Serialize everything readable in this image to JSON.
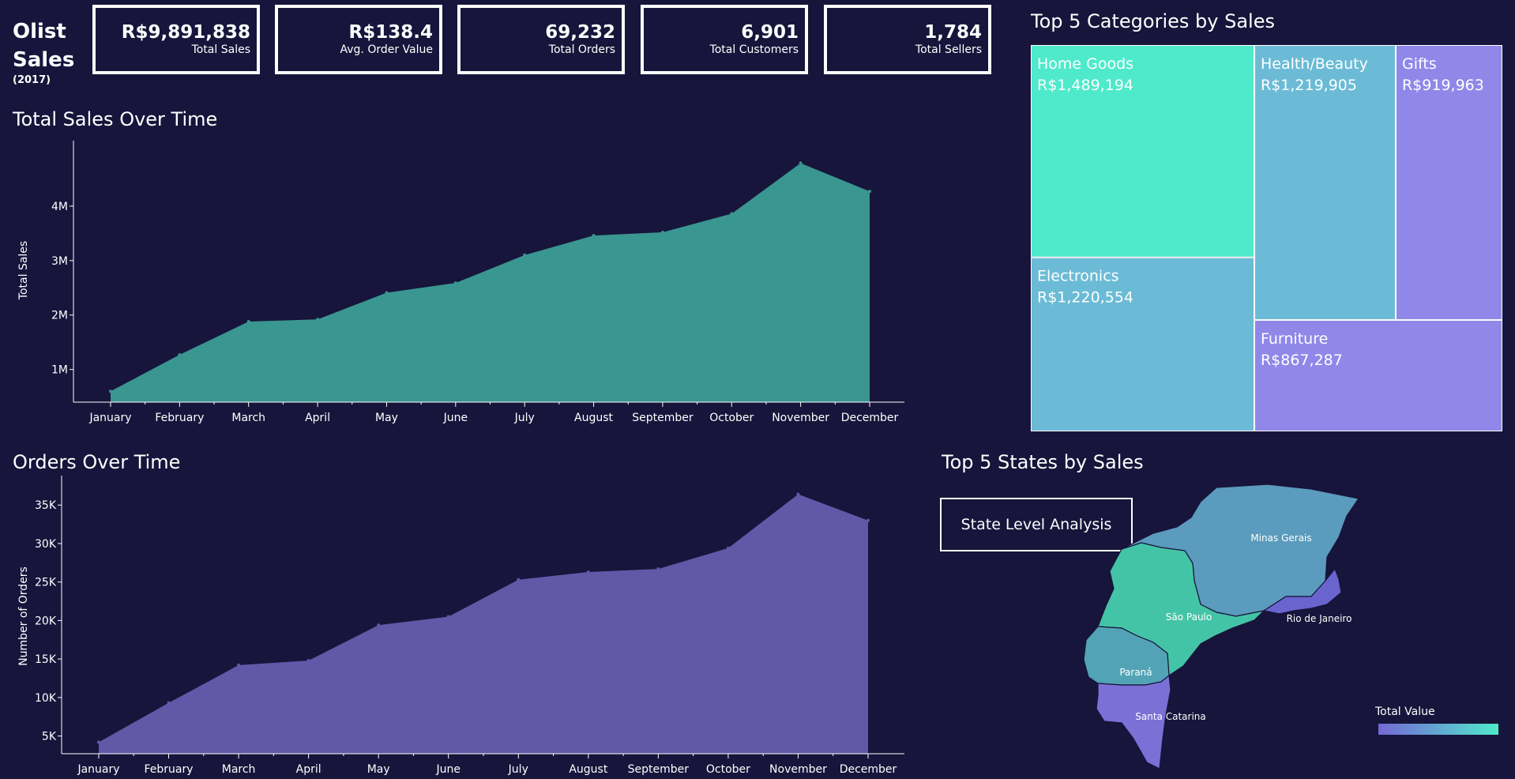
{
  "brand": {
    "line1": "Olist",
    "line2": "Sales",
    "year": "(2017)"
  },
  "kpis": [
    {
      "value": "R$9,891,838",
      "label": "Total Sales"
    },
    {
      "value": "R$138.4",
      "label": "Avg. Order Value"
    },
    {
      "value": "69,232",
      "label": "Total Orders"
    },
    {
      "value": "6,901",
      "label": "Total Customers"
    },
    {
      "value": "1,784",
      "label": "Total Sellers"
    }
  ],
  "colors": {
    "background": "#17153b",
    "teal": "#3a9690",
    "purple": "#6158a8",
    "treemapTeal": "#4feacb",
    "treemapBlue": "#6bbbd6",
    "treemapPurple": "#8f88e9"
  },
  "chart_data": [
    {
      "type": "area",
      "title": "Total Sales Over Time",
      "xlabel": "",
      "ylabel": "Total Sales",
      "categories": [
        "January",
        "February",
        "March",
        "April",
        "May",
        "June",
        "July",
        "August",
        "September",
        "October",
        "November",
        "December"
      ],
      "values": [
        0.6,
        1.27,
        1.88,
        1.92,
        2.41,
        2.59,
        3.1,
        3.46,
        3.52,
        3.86,
        4.79,
        4.27
      ],
      "yticks": [
        1,
        2,
        3,
        4
      ],
      "ytick_labels": [
        "1M",
        "2M",
        "3M",
        "4M"
      ],
      "ylim": [
        0.4,
        5.0
      ],
      "color": "#3a9690"
    },
    {
      "type": "area",
      "title": "Orders Over Time",
      "xlabel": "",
      "ylabel": "Number of Orders",
      "categories": [
        "January",
        "February",
        "March",
        "April",
        "May",
        "June",
        "July",
        "August",
        "September",
        "October",
        "November",
        "December"
      ],
      "values": [
        4200,
        9300,
        14200,
        14800,
        19400,
        20500,
        25300,
        26300,
        26700,
        29400,
        36400,
        33000
      ],
      "yticks": [
        5000,
        10000,
        15000,
        20000,
        25000,
        30000,
        35000
      ],
      "ytick_labels": [
        "5K",
        "10K",
        "15K",
        "20K",
        "25K",
        "30K",
        "35K"
      ],
      "ylim": [
        2700,
        38000
      ],
      "color": "#6158a8"
    },
    {
      "type": "treemap",
      "title": "Top 5 Categories by Sales",
      "items": [
        {
          "name": "Home Goods",
          "label": "R$1,489,194",
          "value": 1489194
        },
        {
          "name": "Electronics",
          "label": "R$1,220,554",
          "value": 1220554
        },
        {
          "name": "Health/Beauty",
          "label": "R$1,219,905",
          "value": 1219905
        },
        {
          "name": "Gifts",
          "label": "R$919,963",
          "value": 919963
        },
        {
          "name": "Furniture",
          "label": "R$867,287",
          "value": 867287
        }
      ]
    },
    {
      "type": "map",
      "title": "Top 5 States by Sales",
      "states": [
        "Minas Gerais",
        "São Paulo",
        "Rio de Janeiro",
        "Paraná",
        "Santa Catarina"
      ],
      "legend_title": "Total Value"
    }
  ],
  "button": {
    "label": "State Level Analysis"
  }
}
